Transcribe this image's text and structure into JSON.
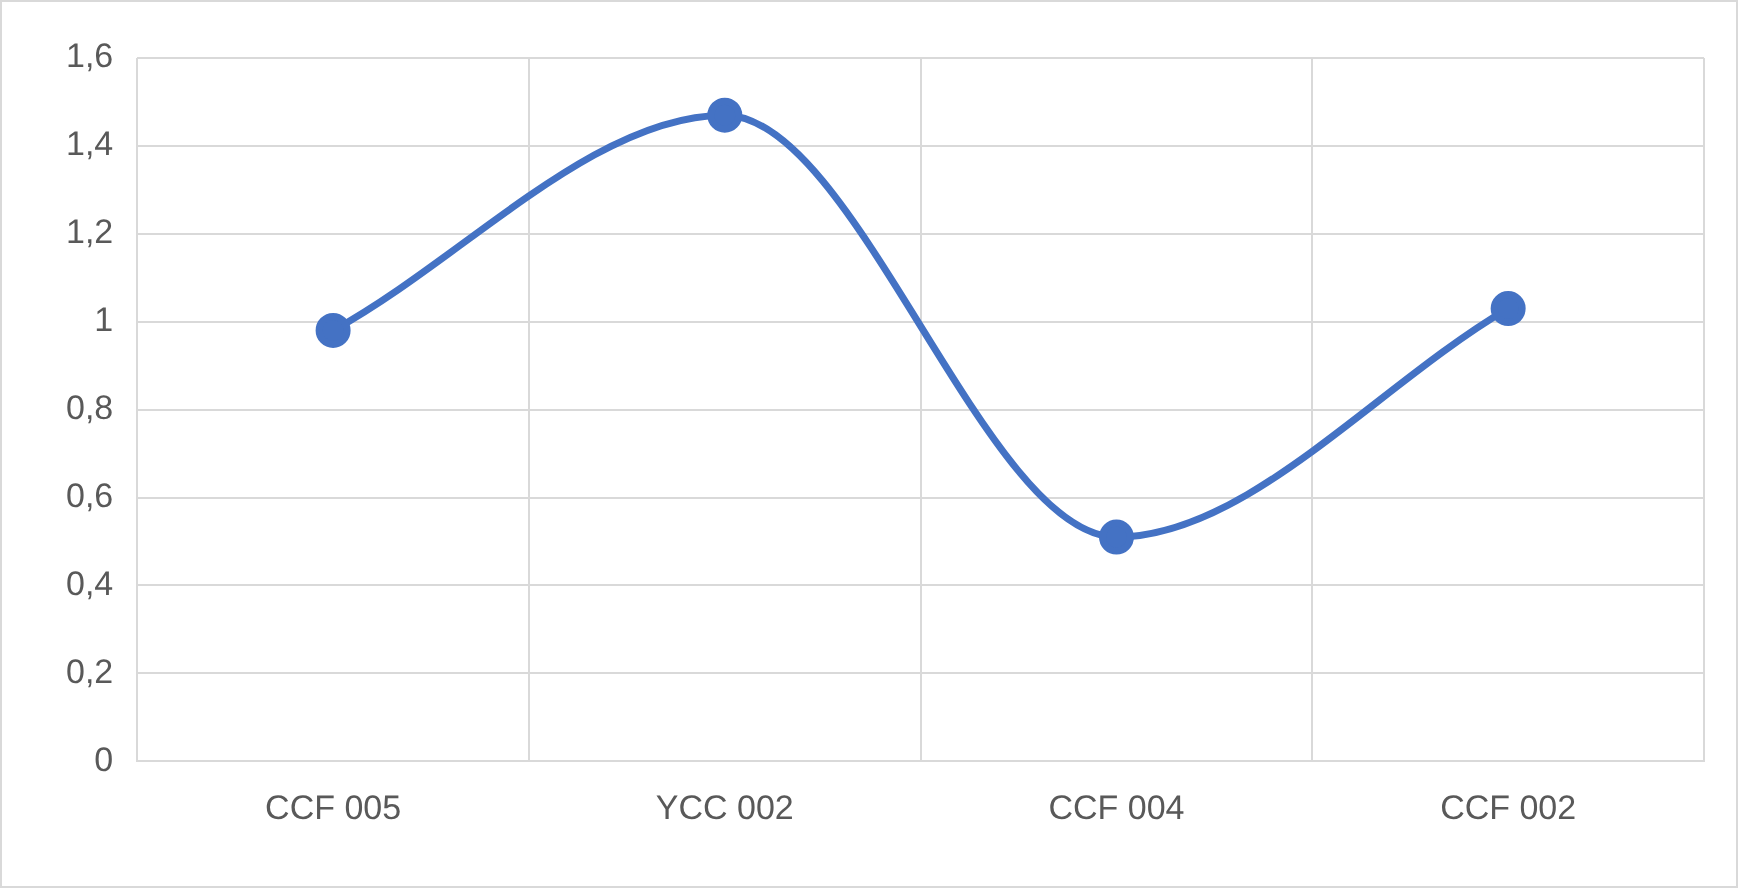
{
  "chart_data": {
    "type": "line",
    "categories": [
      "CCF 005",
      "YCC 002",
      "CCF 004",
      "CCF 002"
    ],
    "series": [
      {
        "color": "#4472c4",
        "values": [
          0.98,
          1.47,
          0.51,
          1.03
        ]
      }
    ],
    "ylim": [
      0,
      1.6
    ],
    "yticks": [
      0,
      {
        "value": 0.2,
        "label": "0,2"
      },
      {
        "value": 0.4,
        "label": "0,4"
      },
      {
        "value": 0.6,
        "label": "0,6"
      },
      {
        "value": 0.8,
        "label": "0,8"
      },
      1,
      {
        "value": 1.2,
        "label": "1,2"
      },
      {
        "value": 1.4,
        "label": "1,4"
      },
      {
        "value": 1.6,
        "label": "1,6"
      }
    ],
    "grid": true,
    "marker": "circle",
    "line_style": "solid",
    "legend": false
  }
}
